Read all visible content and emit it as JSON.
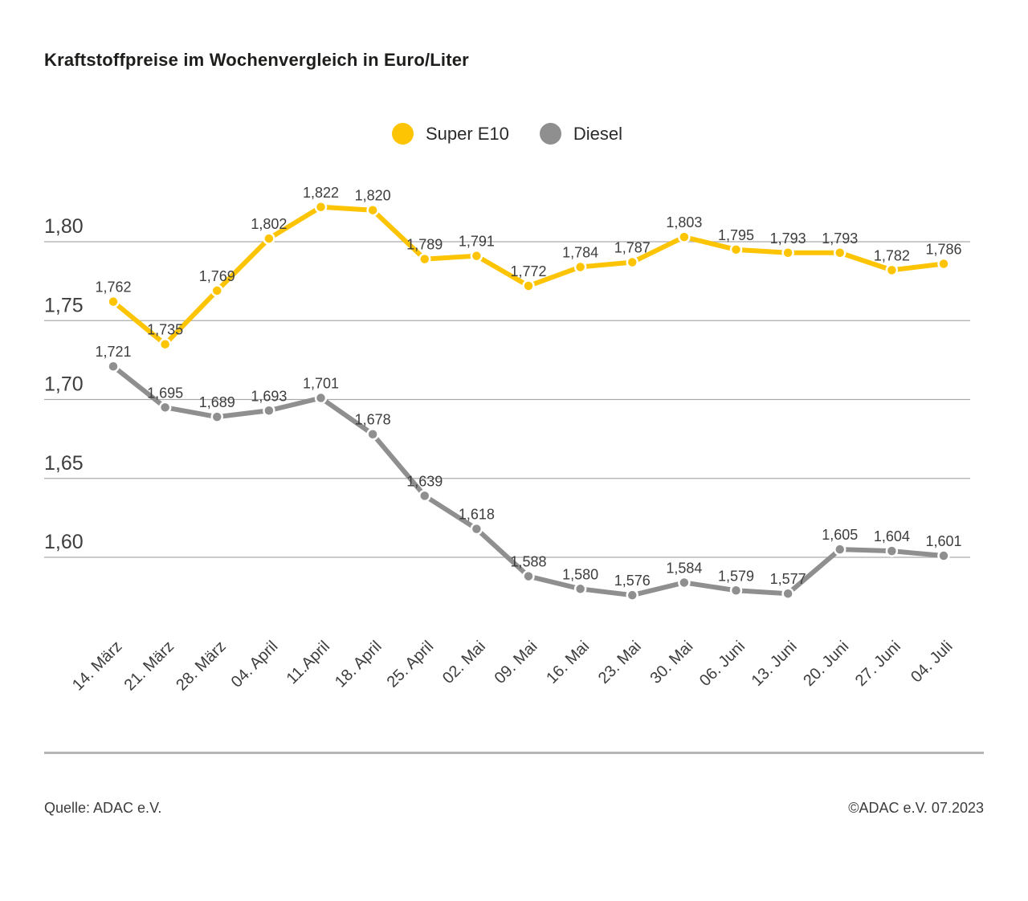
{
  "footer": {
    "source": "Quelle: ADAC e.V.",
    "copyright": "©ADAC e.V. 07.2023"
  },
  "chart_data": {
    "type": "line",
    "title": "Kraftstoffpreise im Wochenvergleich in Euro/Liter",
    "unit": "Euro/Liter",
    "legend_position": "top-center",
    "grid": "horizontal",
    "categories": [
      "14. März",
      "21. März",
      "28. März",
      "04. April",
      "11.April",
      "18. April",
      "25. April",
      "02. Mai",
      "09. Mai",
      "16. Mai",
      "23. Mai",
      "30. Mai",
      "06. Juni",
      "13. Juni",
      "20. Juni",
      "27. Juni",
      "04. Juli"
    ],
    "series": [
      {
        "name": "Super E10",
        "color": "#FCC403",
        "values": [
          1.762,
          1.735,
          1.769,
          1.802,
          1.822,
          1.82,
          1.789,
          1.791,
          1.772,
          1.784,
          1.787,
          1.803,
          1.795,
          1.793,
          1.793,
          1.782,
          1.786
        ],
        "point_labels": [
          "1,762",
          "1,735",
          "1,769",
          "1,802",
          "1,822",
          "1,820",
          "1,789",
          "1,791",
          "1,772",
          "1,784",
          "1,787",
          "1,803",
          "1,795",
          "1,793",
          "1,793",
          "1,782",
          "1,786"
        ]
      },
      {
        "name": "Diesel",
        "color": "#8F8F8F",
        "values": [
          1.721,
          1.695,
          1.689,
          1.693,
          1.701,
          1.678,
          1.639,
          1.618,
          1.588,
          1.58,
          1.576,
          1.584,
          1.579,
          1.577,
          1.605,
          1.604,
          1.601
        ],
        "point_labels": [
          "1,721",
          "1,695",
          "1,689",
          "1,693",
          "1,701",
          "1,678",
          "1,639",
          "1,618",
          "1,588",
          "1,580",
          "1,576",
          "1,584",
          "1,579",
          "1,577",
          "1,605",
          "1,604",
          "1,601"
        ]
      }
    ],
    "y_axis": {
      "ticks": [
        1.8,
        1.75,
        1.7,
        1.65,
        1.6
      ],
      "tick_labels": [
        "1,80",
        "1,75",
        "1,70",
        "1,65",
        "1,60"
      ],
      "range": [
        1.56,
        1.845
      ]
    },
    "x_axis": {
      "label_rotation_deg": -45
    },
    "colors": {
      "gridline": "#ABABAB",
      "text": "#3d3d3d",
      "point_halo": "#ffffff"
    }
  }
}
